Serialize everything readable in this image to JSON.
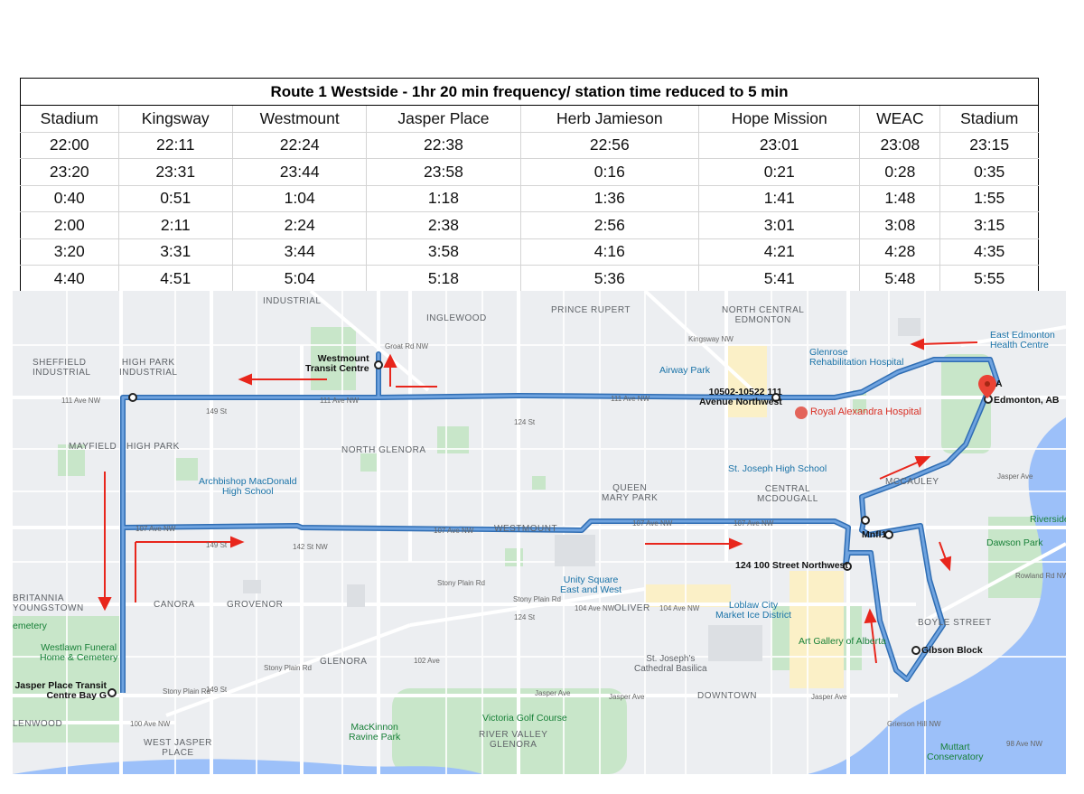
{
  "schedule": {
    "title": "Route 1 Westside - 1hr 20 min frequency/ station time reduced to 5 min",
    "stations": [
      "Stadium",
      "Kingsway",
      "Westmount",
      "Jasper Place",
      "Herb Jamieson",
      "Hope Mission",
      "WEAC",
      "Stadium"
    ],
    "rows": [
      [
        "22:00",
        "22:11",
        "22:24",
        "22:38",
        "22:56",
        "23:01",
        "23:08",
        "23:15"
      ],
      [
        "23:20",
        "23:31",
        "23:44",
        "23:58",
        "0:16",
        "0:21",
        "0:28",
        "0:35"
      ],
      [
        "0:40",
        "0:51",
        "1:04",
        "1:18",
        "1:36",
        "1:41",
        "1:48",
        "1:55"
      ],
      [
        "2:00",
        "2:11",
        "2:24",
        "2:38",
        "2:56",
        "3:01",
        "3:08",
        "3:15"
      ],
      [
        "3:20",
        "3:31",
        "3:44",
        "3:58",
        "4:16",
        "4:21",
        "4:28",
        "4:35"
      ],
      [
        "4:40",
        "4:51",
        "5:04",
        "5:18",
        "5:36",
        "5:41",
        "5:48",
        "5:55"
      ]
    ]
  },
  "map": {
    "colors": {
      "route": "#4a86c8",
      "arrow": "#e8261c",
      "park": "#c8e6c9",
      "water": "#9cc0f9",
      "hospital": "#e3645a"
    },
    "areas": [
      {
        "name": "INDUSTRIAL"
      },
      {
        "name": "INGLEWOOD"
      },
      {
        "name": "PRINCE RUPERT"
      },
      {
        "name": "NORTH CENTRAL\nEDMONTON"
      },
      {
        "name": "SHEFFIELD\nINDUSTRIAL"
      },
      {
        "name": "HIGH PARK\nINDUSTRIAL"
      },
      {
        "name": "MAYFIELD"
      },
      {
        "name": "HIGH PARK"
      },
      {
        "name": "NORTH GLENORA"
      },
      {
        "name": "QUEEN\nMARY PARK"
      },
      {
        "name": "CENTRAL\nMCDOUGALL"
      },
      {
        "name": "MCCAULEY"
      },
      {
        "name": "WESTMOUNT"
      },
      {
        "name": "CANORA"
      },
      {
        "name": "GROVENOR"
      },
      {
        "name": "OLIVER"
      },
      {
        "name": "BOYLE STREET"
      },
      {
        "name": "GLENORA"
      },
      {
        "name": "DOWNTOWN"
      },
      {
        "name": "BRITANNIA\nYOUNGSTOWN"
      },
      {
        "name": "WEST JASPER\nPLACE"
      },
      {
        "name": "RIVER VALLEY\nGLENORA"
      },
      {
        "name": "LENWOOD"
      }
    ],
    "pois": [
      {
        "name": "Airway Park"
      },
      {
        "name": "Glenrose\nRehabilitation Hospital"
      },
      {
        "name": "East Edmonton\nHealth Centre"
      },
      {
        "name": "Royal Alexandra Hospital"
      },
      {
        "name": "St. Joseph High School"
      },
      {
        "name": "Archbishop MacDonald\nHigh School"
      },
      {
        "name": "Unity Square\nEast and West"
      },
      {
        "name": "Loblaw City\nMarket Ice District"
      },
      {
        "name": "Art Gallery of Alberta"
      },
      {
        "name": "St. Joseph's\nCathedral Basilica"
      },
      {
        "name": "Westlawn Funeral\nHome & Cemetery"
      },
      {
        "name": "Victoria Golf Course"
      },
      {
        "name": "MacKinnon\nRavine Park"
      },
      {
        "name": "Dawson Park"
      },
      {
        "name": "Riverside"
      },
      {
        "name": "Muttart\nConservatory"
      },
      {
        "name": "emetery"
      }
    ],
    "roads": [
      {
        "name": "111 Ave NW"
      },
      {
        "name": "107 Ave NW"
      },
      {
        "name": "104 Ave NW"
      },
      {
        "name": "Stony Plain Rd"
      },
      {
        "name": "Jasper Ave"
      },
      {
        "name": "100 Ave NW"
      },
      {
        "name": "102 Ave"
      },
      {
        "name": "Kingsway NW"
      },
      {
        "name": "Groat Rd NW"
      },
      {
        "name": "124 St"
      },
      {
        "name": "149 St"
      },
      {
        "name": "142 St NW"
      },
      {
        "name": "Rowland Rd NW"
      },
      {
        "name": "98 Ave NW"
      },
      {
        "name": "Grierson Hill NW"
      }
    ],
    "stops": [
      {
        "label": "Westmount\nTransit Centre"
      },
      {
        "label": "10502-10522 111\nAvenue Northwest"
      },
      {
        "label": "A"
      },
      {
        "label": "Edmonton, AB"
      },
      {
        "label": "Mnfl1"
      },
      {
        "label": "124 100 Street Northwest"
      },
      {
        "label": "Gibson Block"
      },
      {
        "label": "Jasper Place Transit\nCentre Bay G"
      }
    ]
  }
}
